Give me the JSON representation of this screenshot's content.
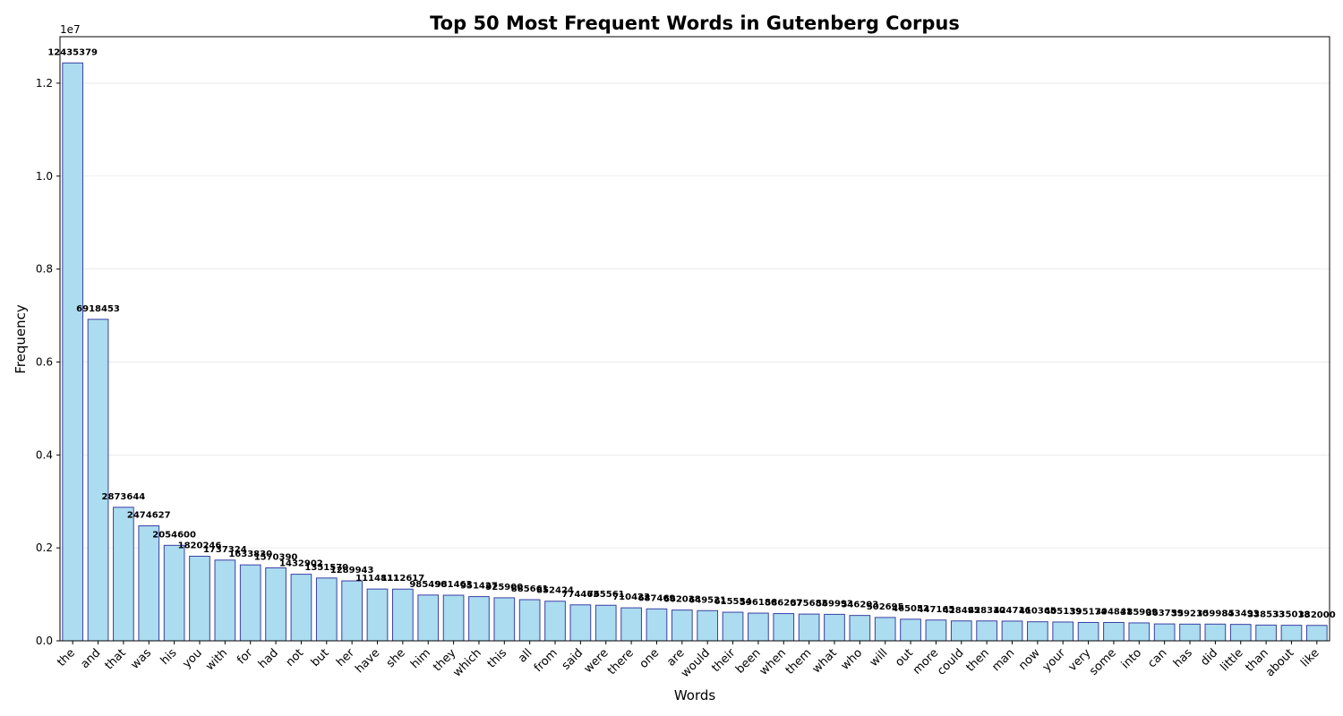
{
  "chart_data": {
    "type": "bar",
    "title": "Top 50 Most Frequent Words in Gutenberg Corpus",
    "xlabel": "Words",
    "ylabel": "Frequency",
    "y_offset_label": "1e7",
    "ylim": [
      0,
      13000000
    ],
    "yticks": [
      0,
      2000000,
      4000000,
      6000000,
      8000000,
      10000000,
      12000000
    ],
    "ytick_labels": [
      "0.0",
      "0.2",
      "0.4",
      "0.6",
      "0.8",
      "1.0",
      "1.2"
    ],
    "grid": "y",
    "categories": [
      "the",
      "and",
      "that",
      "was",
      "his",
      "you",
      "with",
      "for",
      "had",
      "not",
      "but",
      "her",
      "have",
      "she",
      "him",
      "they",
      "which",
      "this",
      "all",
      "from",
      "said",
      "were",
      "there",
      "one",
      "are",
      "would",
      "their",
      "been",
      "when",
      "them",
      "what",
      "who",
      "will",
      "out",
      "more",
      "could",
      "then",
      "man",
      "now",
      "your",
      "very",
      "some",
      "into",
      "can",
      "has",
      "did",
      "little",
      "than",
      "about",
      "like"
    ],
    "values": [
      12435379,
      6918453,
      2873644,
      2474627,
      2054600,
      1820246,
      1737324,
      1633830,
      1570390,
      1432902,
      1351570,
      1289943,
      1114811,
      1112617,
      985490,
      981463,
      951427,
      925900,
      885661,
      852424,
      774463,
      765561,
      710423,
      687469,
      662038,
      649521,
      615554,
      596186,
      586207,
      575683,
      569993,
      546203,
      502695,
      465052,
      447165,
      428495,
      428310,
      424716,
      410365,
      405139,
      395174,
      394841,
      385909,
      363759,
      359210,
      359984,
      353493,
      338533,
      335018,
      332000
    ]
  }
}
